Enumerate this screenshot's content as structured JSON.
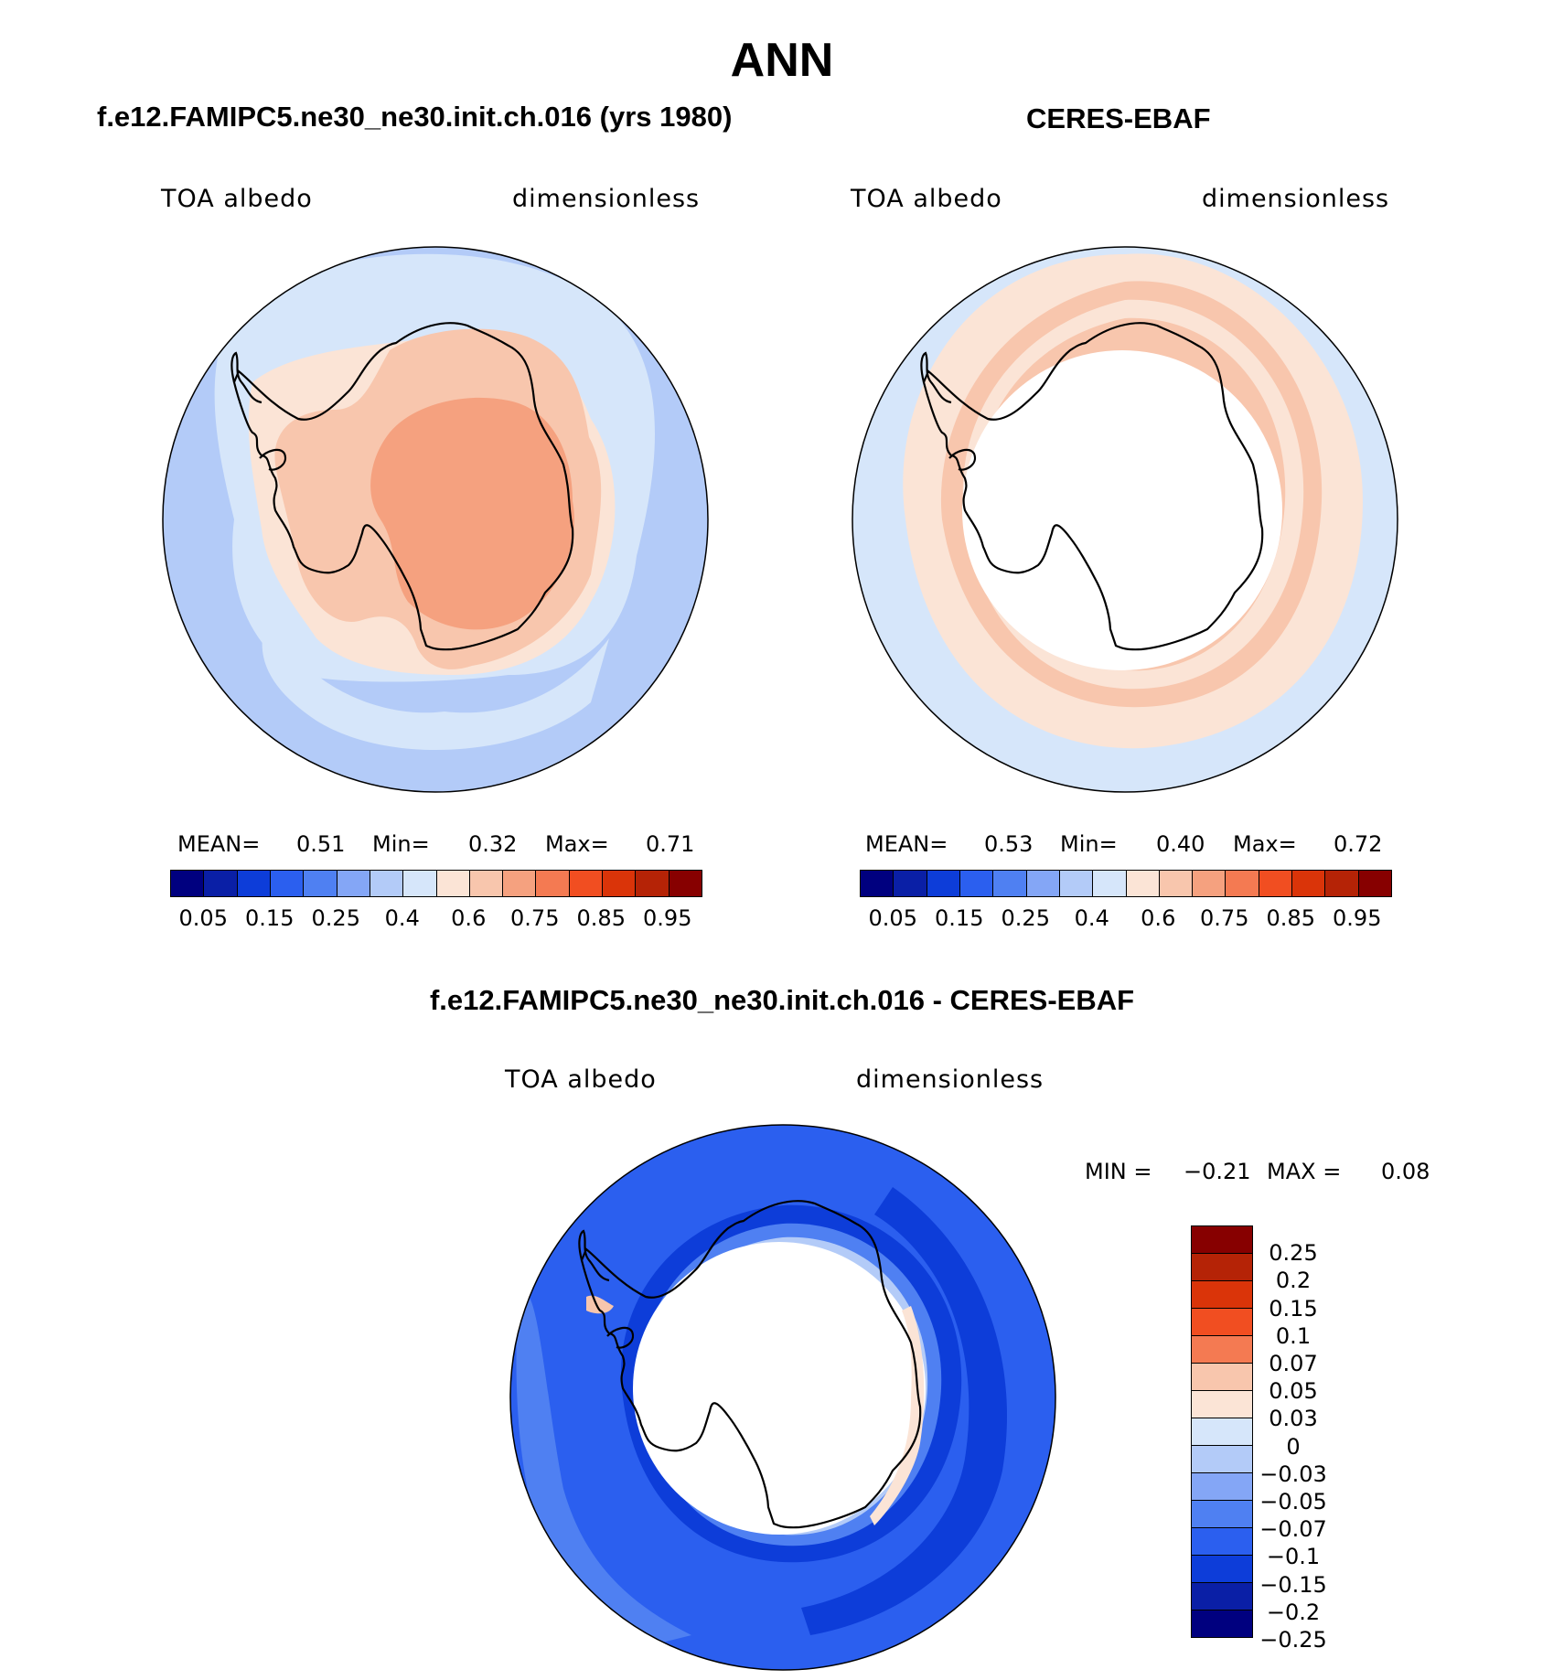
{
  "page": {
    "title": "ANN"
  },
  "panels": {
    "model": {
      "title": "f.e12.FAMIPC5.ne30_ne30.init.ch.016 (yrs 1980)",
      "variable": "TOA albedo",
      "units": "dimensionless",
      "stats": {
        "mean_label": "MEAN=",
        "mean": "0.51",
        "min_label": "Min=",
        "min": "0.32",
        "max_label": "Max=",
        "max": "0.71"
      }
    },
    "obs": {
      "title": "CERES-EBAF",
      "variable": "TOA albedo",
      "units": "dimensionless",
      "stats": {
        "mean_label": "MEAN=",
        "mean": "0.53",
        "min_label": "Min=",
        "min": "0.40",
        "max_label": "Max=",
        "max": "0.72"
      }
    },
    "diff": {
      "title": "f.e12.FAMIPC5.ne30_ne30.init.ch.016 - CERES-EBAF",
      "variable": "TOA albedo",
      "units": "dimensionless",
      "stats": {
        "min_label": "MIN =",
        "min": "−0.21",
        "max_label": "MAX =",
        "max": "0.08"
      }
    }
  },
  "colorbars": {
    "main": {
      "colors": [
        "#00007f",
        "#0a1fa6",
        "#0d3dd9",
        "#2b5fef",
        "#4f80f2",
        "#84a6f6",
        "#b3cbf8",
        "#d6e6fa",
        "#fbe4d6",
        "#f8c6ad",
        "#f5a17f",
        "#f47a52",
        "#f14e21",
        "#da3409",
        "#b52306",
        "#870000"
      ],
      "tick_labels": [
        "0.05",
        "0.15",
        "0.25",
        "0.4",
        "0.6",
        "0.75",
        "0.85",
        "0.95"
      ]
    },
    "diff": {
      "colors_top_to_bottom": [
        "#870000",
        "#b52306",
        "#da3409",
        "#f14e21",
        "#f47a52",
        "#f8c6ad",
        "#fbe4d6",
        "#d6e6fa",
        "#b3cbf8",
        "#84a6f6",
        "#4f80f2",
        "#2b5fef",
        "#0d3dd9",
        "#0a1fa6",
        "#00007f"
      ],
      "tick_labels": [
        "0.25",
        "0.2",
        "0.15",
        "0.1",
        "0.07",
        "0.05",
        "0.03",
        "0",
        "−0.03",
        "−0.05",
        "−0.07",
        "−0.1",
        "−0.15",
        "−0.2",
        "−0.25"
      ]
    }
  }
}
